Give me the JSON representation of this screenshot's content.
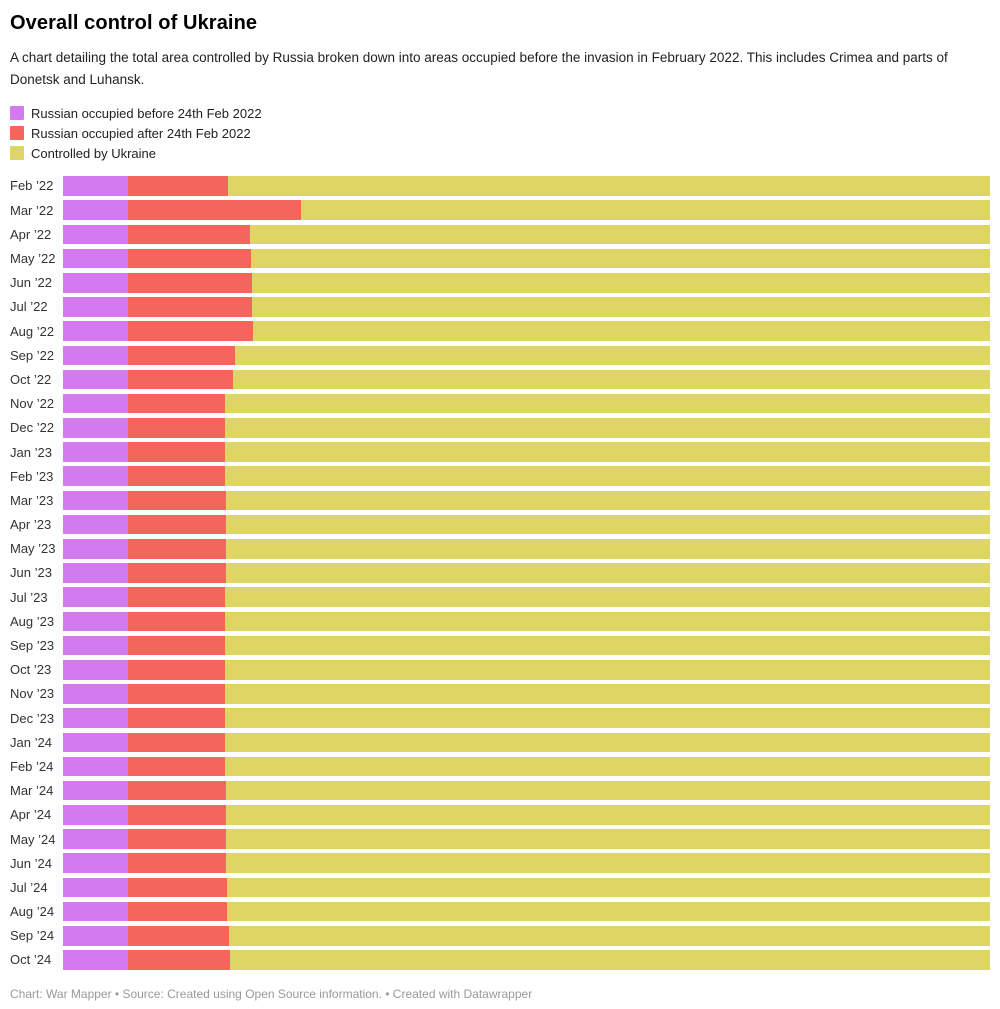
{
  "header": {
    "title": "Overall control of Ukraine",
    "description": "A chart detailing the total area controlled by Russia broken down into areas occupied before the invasion in February 2022. This includes Crimea and parts of Donetsk and Luhansk."
  },
  "footer": {
    "text": "Chart: War Mapper • Source: Created using Open Source information. • Created with Datawrapper"
  },
  "chart_data": {
    "type": "bar",
    "stacked": true,
    "orientation": "horizontal",
    "title": "Overall control of Ukraine",
    "xlabel": "",
    "ylabel": "",
    "xlim": [
      0,
      100
    ],
    "unit": "% of total area of Ukraine",
    "grid": false,
    "legend_position": "top-left",
    "categories": [
      "Feb ’22",
      "Mar ’22",
      "Apr ’22",
      "May ’22",
      "Jun ’22",
      "Jul ’22",
      "Aug ’22",
      "Sep ’22",
      "Oct ’22",
      "Nov ’22",
      "Dec ’22",
      "Jan ’23",
      "Feb ’23",
      "Mar ’23",
      "Apr ’23",
      "May ’23",
      "Jun ’23",
      "Jul ’23",
      "Aug ’23",
      "Sep ’23",
      "Oct ’23",
      "Nov ’23",
      "Dec ’23",
      "Jan ’24",
      "Feb ’24",
      "Mar ’24",
      "Apr ’24",
      "May ’24",
      "Jun ’24",
      "Jul ’24",
      "Aug ’24",
      "Sep ’24",
      "Oct ’24"
    ],
    "series": [
      {
        "name": "Russian occupied before 24th Feb 2022",
        "color": "#d37bee",
        "values": [
          7.0,
          7.0,
          7.0,
          7.0,
          7.0,
          7.0,
          7.0,
          7.0,
          7.0,
          7.0,
          7.0,
          7.0,
          7.0,
          7.0,
          7.0,
          7.0,
          7.0,
          7.0,
          7.0,
          7.0,
          7.0,
          7.0,
          7.0,
          7.0,
          7.0,
          7.0,
          7.0,
          7.0,
          7.0,
          7.0,
          7.0,
          7.0,
          7.0
        ]
      },
      {
        "name": "Russian occupied after 24th Feb 2022",
        "color": "#f4655c",
        "values": [
          10.8,
          18.7,
          13.2,
          13.3,
          13.4,
          13.4,
          13.5,
          11.6,
          11.3,
          10.5,
          10.5,
          10.5,
          10.5,
          10.6,
          10.6,
          10.6,
          10.6,
          10.5,
          10.5,
          10.5,
          10.5,
          10.5,
          10.5,
          10.5,
          10.5,
          10.6,
          10.6,
          10.6,
          10.6,
          10.7,
          10.7,
          10.9,
          11.0
        ]
      },
      {
        "name": "Controlled by Ukraine",
        "color": "#ddd664",
        "values": [
          82.2,
          74.3,
          79.8,
          79.7,
          79.6,
          79.6,
          79.5,
          81.4,
          81.7,
          82.5,
          82.5,
          82.5,
          82.5,
          82.4,
          82.4,
          82.4,
          82.4,
          82.5,
          82.5,
          82.5,
          82.5,
          82.5,
          82.5,
          82.5,
          82.5,
          82.4,
          82.4,
          82.4,
          82.4,
          82.3,
          82.3,
          82.1,
          82.0
        ]
      }
    ]
  }
}
